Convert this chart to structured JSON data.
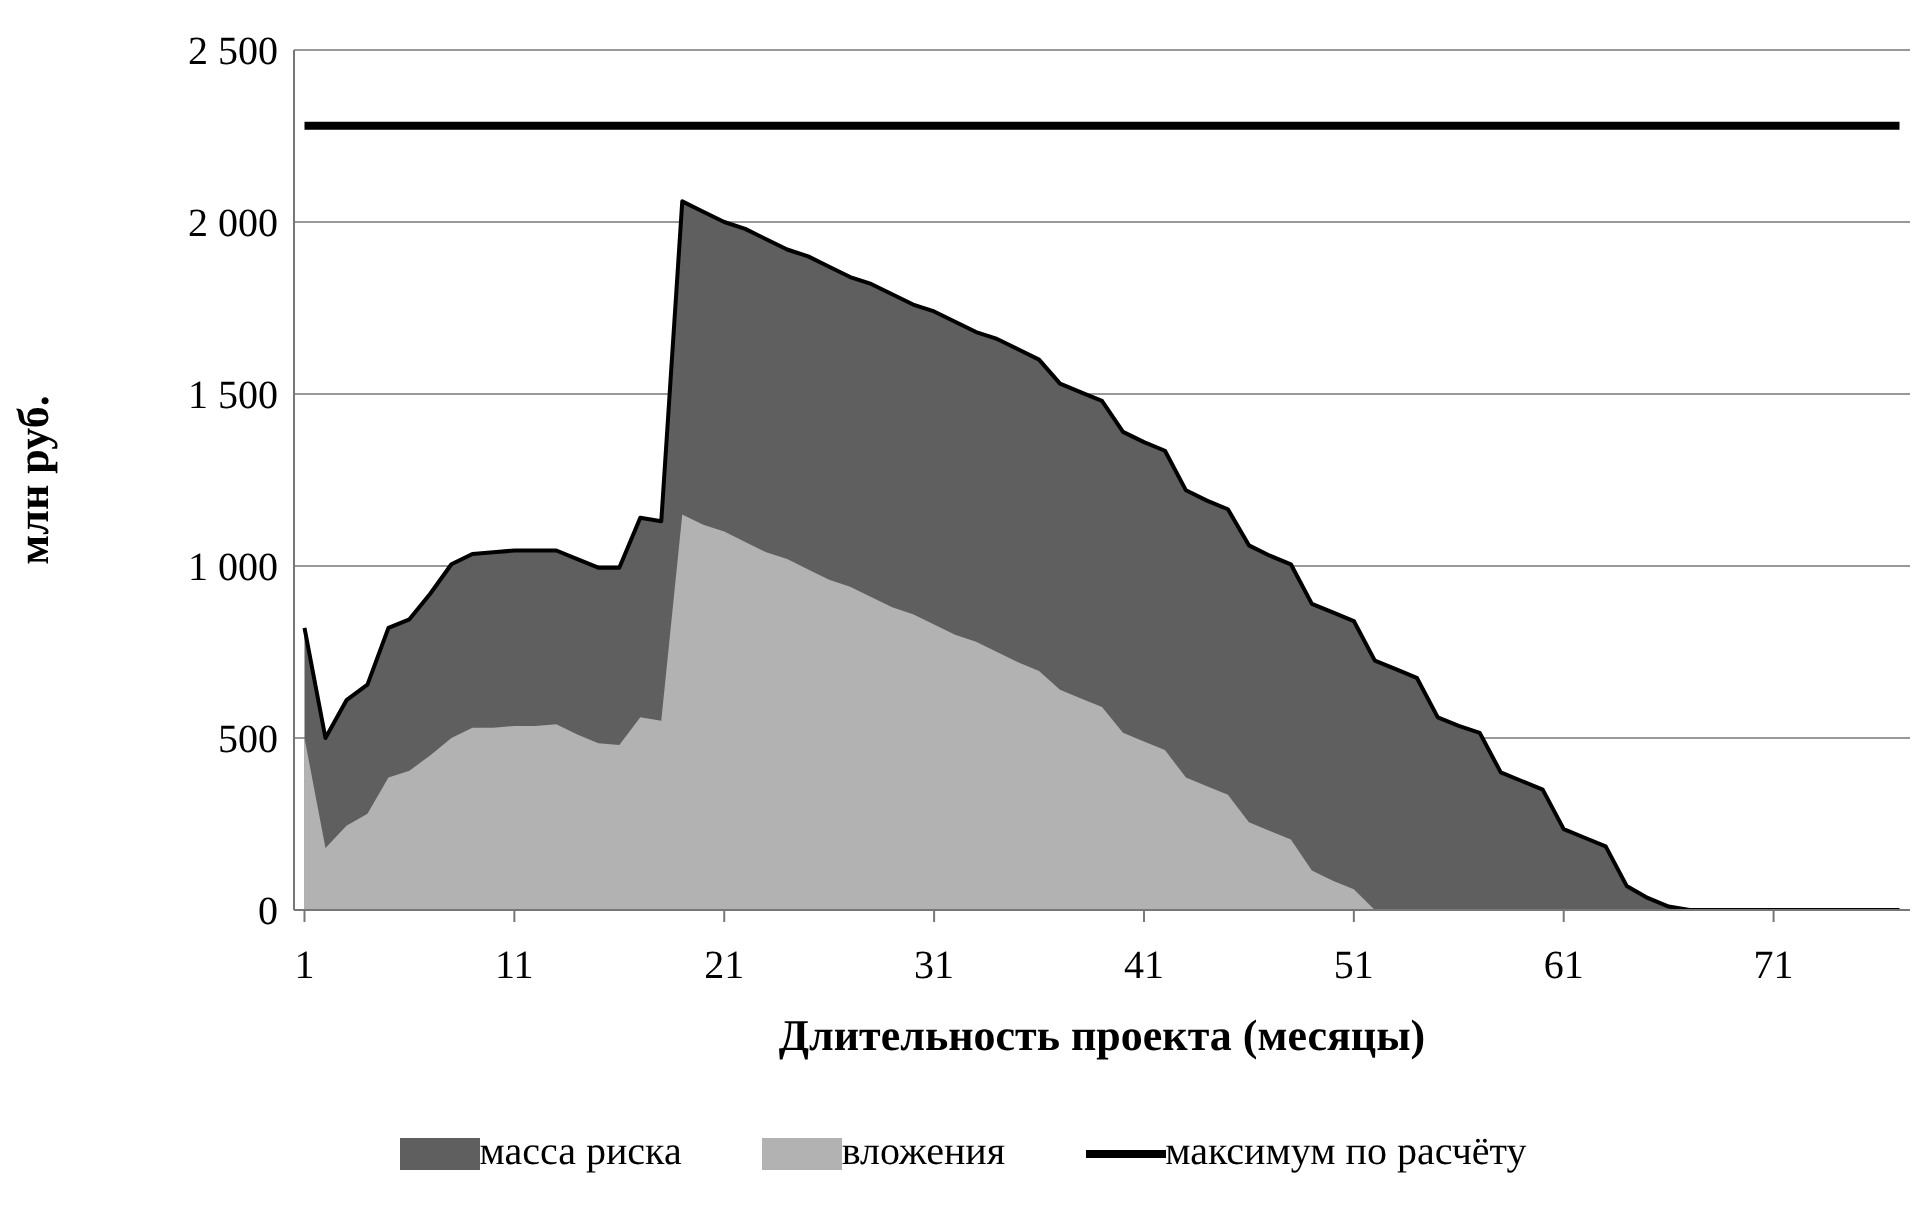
{
  "chart_data": {
    "type": "area",
    "xlabel": "Длительность проекта (месяцы)",
    "ylabel": "млн руб.",
    "x": [
      1,
      2,
      3,
      4,
      5,
      6,
      7,
      8,
      9,
      10,
      11,
      12,
      13,
      14,
      15,
      16,
      17,
      18,
      19,
      20,
      21,
      22,
      23,
      24,
      25,
      26,
      27,
      28,
      29,
      30,
      31,
      32,
      33,
      34,
      35,
      36,
      37,
      38,
      39,
      40,
      41,
      42,
      43,
      44,
      45,
      46,
      47,
      48,
      49,
      50,
      51,
      52,
      53,
      54,
      55,
      56,
      57,
      58,
      59,
      60,
      61,
      62,
      63,
      64,
      65,
      66,
      67,
      68,
      69,
      70,
      71,
      72,
      73,
      74,
      75,
      76,
      77
    ],
    "series": [
      {
        "name": "масса риска",
        "color": "#5f5f5f",
        "values": [
          820,
          500,
          610,
          655,
          820,
          845,
          920,
          1005,
          1035,
          1040,
          1045,
          1045,
          1045,
          1020,
          995,
          995,
          1140,
          1130,
          2060,
          2030,
          2000,
          1980,
          1950,
          1920,
          1900,
          1870,
          1840,
          1820,
          1790,
          1760,
          1740,
          1710,
          1680,
          1660,
          1630,
          1600,
          1530,
          1505,
          1480,
          1390,
          1360,
          1335,
          1220,
          1190,
          1165,
          1060,
          1030,
          1005,
          890,
          865,
          840,
          725,
          700,
          675,
          560,
          535,
          515,
          400,
          375,
          350,
          235,
          210,
          185,
          70,
          35,
          10,
          0,
          0,
          0,
          0,
          0,
          0,
          0,
          0,
          0,
          0,
          0
        ]
      },
      {
        "name": "вложения",
        "color": "#b2b2b2",
        "values": [
          500,
          180,
          245,
          280,
          385,
          405,
          450,
          500,
          530,
          530,
          535,
          535,
          540,
          510,
          485,
          480,
          560,
          550,
          1150,
          1120,
          1100,
          1070,
          1040,
          1020,
          990,
          960,
          940,
          910,
          880,
          860,
          830,
          800,
          780,
          750,
          720,
          695,
          640,
          615,
          590,
          515,
          490,
          465,
          385,
          360,
          335,
          255,
          230,
          205,
          115,
          85,
          60,
          0,
          null,
          null,
          null,
          null,
          null,
          null,
          null,
          null,
          null,
          null,
          null,
          null,
          null,
          null,
          null,
          null,
          null,
          null,
          null,
          null,
          null,
          null,
          null,
          null,
          null
        ]
      },
      {
        "name": "максимум по расчёту",
        "type": "line",
        "color": "#000000",
        "values": [
          2280,
          2280,
          2280,
          2280,
          2280,
          2280,
          2280,
          2280,
          2280,
          2280,
          2280,
          2280,
          2280,
          2280,
          2280,
          2280,
          2280,
          2280,
          2280,
          2280,
          2280,
          2280,
          2280,
          2280,
          2280,
          2280,
          2280,
          2280,
          2280,
          2280,
          2280,
          2280,
          2280,
          2280,
          2280,
          2280,
          2280,
          2280,
          2280,
          2280,
          2280,
          2280,
          2280,
          2280,
          2280,
          2280,
          2280,
          2280,
          2280,
          2280,
          2280,
          2280,
          2280,
          2280,
          2280,
          2280,
          2280,
          2280,
          2280,
          2280,
          2280,
          2280,
          2280,
          2280,
          2280,
          2280,
          2280,
          2280,
          2280,
          2280,
          2280,
          2280,
          2280,
          2280,
          2280,
          2280,
          2280
        ]
      }
    ],
    "xlim": [
      0.5,
      77.5
    ],
    "xticks": [
      1,
      11,
      21,
      31,
      41,
      51,
      61,
      71
    ],
    "ylim": [
      0,
      2500
    ],
    "yticks": [
      0,
      500,
      {
        "value": 1000,
        "label": "1 000"
      },
      {
        "value": 1500,
        "label": "1 500"
      },
      {
        "value": 2000,
        "label": "2 000"
      },
      {
        "value": 2500,
        "label": "2 500"
      }
    ],
    "grid": "y",
    "legend": "bottom",
    "line_style": "solid",
    "marker": "none"
  }
}
